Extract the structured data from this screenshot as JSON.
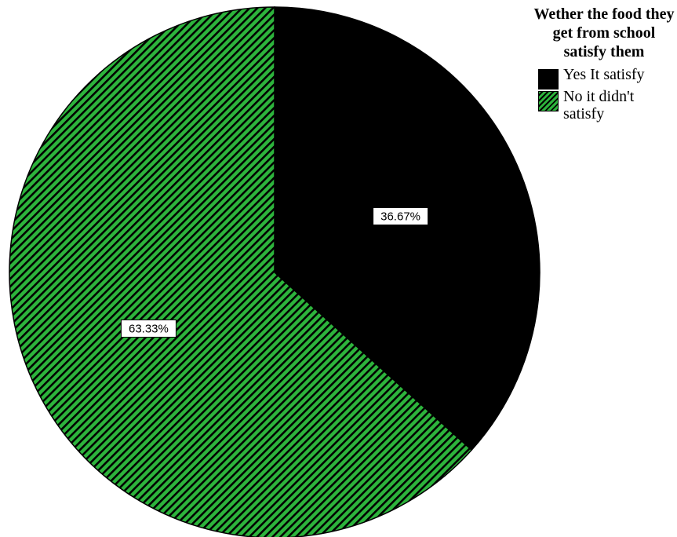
{
  "chart_data": {
    "type": "pie",
    "title": "Wether the food they get from school satisfy them",
    "legend_position": "top-right",
    "categories": [
      "Yes It satisfy",
      "No it didn't satisfy"
    ],
    "values": [
      36.67,
      63.33
    ],
    "data_labels": [
      "36.67%",
      "63.33%"
    ],
    "colors": [
      "#000000",
      "#2db43c"
    ]
  },
  "legend": {
    "title": "Wether the food they get from school satisfy them",
    "items": [
      {
        "label": "Yes It satisfy"
      },
      {
        "label": "No it didn't satisfy"
      }
    ]
  }
}
